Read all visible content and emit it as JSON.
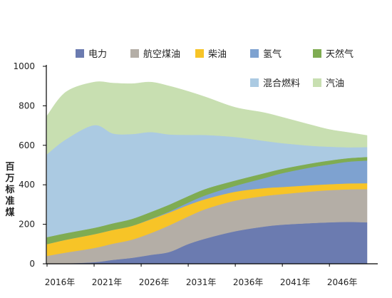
{
  "chart_data": {
    "type": "area",
    "stacked": true,
    "xlabel": "",
    "ylabel": "百万标准煤",
    "ylim": [
      0,
      1000
    ],
    "yticks": [
      0,
      200,
      400,
      600,
      800,
      1000
    ],
    "xlim": [
      2016,
      2050
    ],
    "xticks": [
      2016,
      2021,
      2026,
      2031,
      2036,
      2041,
      2046
    ],
    "xtick_labels": [
      "2016年",
      "2021年",
      "2026年",
      "2031年",
      "2036年",
      "2041年",
      "2046年"
    ],
    "x": [
      2016,
      2018,
      2021,
      2023,
      2025,
      2027,
      2029,
      2031,
      2033,
      2036,
      2039,
      2041,
      2044,
      2046,
      2048,
      2050
    ],
    "series": [
      {
        "name": "电力",
        "color": "#6b7bb0",
        "values": [
          0,
          2,
          8,
          20,
          30,
          45,
          60,
          100,
          130,
          165,
          188,
          198,
          206,
          210,
          212,
          210
        ]
      },
      {
        "name": "航空煤油",
        "color": "#b4aea6",
        "values": [
          40,
          55,
          72,
          82,
          92,
          110,
          135,
          140,
          150,
          155,
          155,
          155,
          160,
          163,
          165,
          168
        ]
      },
      {
        "name": "柴油",
        "color": "#f7c427",
        "values": [
          60,
          65,
          70,
          70,
          70,
          70,
          65,
          58,
          50,
          45,
          40,
          36,
          32,
          30,
          30,
          30
        ]
      },
      {
        "name": "氢气",
        "color": "#7ea2d0",
        "values": [
          0,
          0,
          0,
          0,
          0,
          2,
          5,
          12,
          20,
          30,
          50,
          70,
          90,
          100,
          110,
          115
        ]
      },
      {
        "name": "天然气",
        "color": "#7fac52",
        "values": [
          35,
          33,
          32,
          33,
          35,
          35,
          35,
          33,
          32,
          27,
          25,
          22,
          20,
          20,
          18,
          18
        ]
      },
      {
        "name": "混合燃料",
        "color": "#abcae2",
        "values": [
          420,
          475,
          520,
          455,
          430,
          405,
          355,
          310,
          270,
          220,
          165,
          130,
          90,
          70,
          55,
          50
        ]
      },
      {
        "name": "汽油",
        "color": "#c8dfb1",
        "values": [
          195,
          240,
          218,
          255,
          255,
          253,
          245,
          220,
          190,
          150,
          143,
          131,
          106,
          87,
          75,
          59
        ]
      }
    ],
    "legend": {
      "placement": "top",
      "columns": 5
    }
  }
}
